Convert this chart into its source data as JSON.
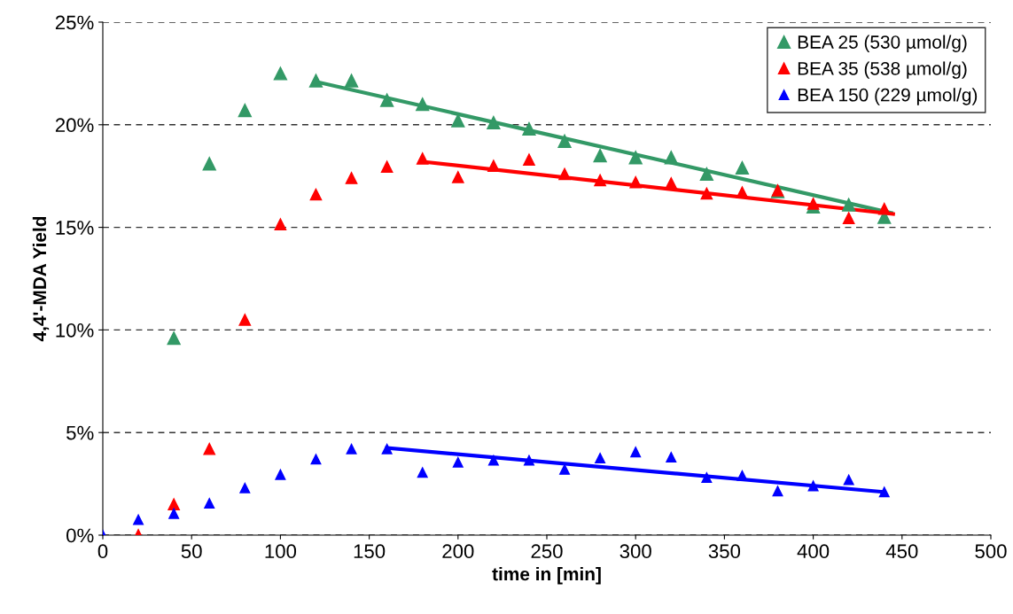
{
  "chart_data": {
    "type": "scatter",
    "xlabel": "time in [min]",
    "ylabel": "4,4'-MDA Yield",
    "xlim": [
      0,
      500
    ],
    "xticks": [
      0,
      50,
      100,
      150,
      200,
      250,
      300,
      350,
      400,
      450,
      500
    ],
    "ylim": [
      0,
      25
    ],
    "yticks": [
      {
        "value": 0,
        "label": "0%"
      },
      {
        "value": 5,
        "label": "5%"
      },
      {
        "value": 10,
        "label": "10%"
      },
      {
        "value": 15,
        "label": "15%"
      },
      {
        "value": 20,
        "label": "20%"
      },
      {
        "value": 25,
        "label": "25%"
      }
    ],
    "grid": "y",
    "legend": "top right",
    "marker": "triangle",
    "series": [
      {
        "name": "BEA 25 (530 µmol/g)",
        "color": "#339966",
        "x": [
          40,
          60,
          80,
          100,
          120,
          140,
          160,
          180,
          200,
          220,
          240,
          260,
          280,
          300,
          320,
          340,
          360,
          380,
          400,
          420,
          440
        ],
        "values": [
          9.6,
          18.1,
          20.7,
          22.5,
          22.15,
          22.15,
          21.2,
          21.0,
          20.2,
          20.1,
          19.8,
          19.2,
          18.5,
          18.4,
          18.4,
          17.6,
          17.9,
          16.75,
          16.0,
          16.1,
          15.5
        ]
      },
      {
        "name": "BEA 35 (538 µmol/g)",
        "color": "#ff0000",
        "x": [
          20,
          40,
          60,
          80,
          100,
          120,
          140,
          160,
          180,
          200,
          220,
          240,
          260,
          280,
          300,
          320,
          340,
          360,
          380,
          400,
          420,
          440
        ],
        "values": [
          0,
          1.5,
          4.2,
          10.5,
          15.15,
          16.6,
          17.4,
          17.95,
          18.35,
          17.45,
          18.0,
          18.3,
          17.6,
          17.3,
          17.2,
          17.15,
          16.65,
          16.7,
          16.8,
          16.15,
          15.45,
          15.9
        ]
      },
      {
        "name": "BEA 150 (229 µmol/g)",
        "color": "#0000ff",
        "x": [
          0,
          20,
          40,
          60,
          80,
          100,
          120,
          140,
          160,
          180,
          200,
          220,
          240,
          260,
          280,
          300,
          320,
          340,
          360,
          380,
          400,
          420,
          440
        ],
        "values": [
          0,
          0.75,
          1.05,
          1.55,
          2.3,
          2.95,
          3.7,
          4.2,
          4.2,
          3.05,
          3.55,
          3.65,
          3.65,
          3.2,
          3.75,
          4.05,
          3.8,
          2.8,
          2.9,
          2.15,
          2.4,
          2.7,
          2.1
        ]
      },
      {
        "type": "line",
        "color": "#339966",
        "line_style": "solid",
        "marker": "none",
        "x": [
          120,
          444
        ],
        "values": [
          22.1,
          15.7
        ]
      },
      {
        "type": "line",
        "color": "#ff0000",
        "line_style": "solid",
        "marker": "none",
        "x": [
          180,
          445
        ],
        "values": [
          18.2,
          15.65
        ]
      },
      {
        "type": "line",
        "color": "#0000ff",
        "line_style": "solid",
        "marker": "none",
        "x": [
          160,
          440
        ],
        "values": [
          4.25,
          2.1
        ]
      }
    ]
  }
}
